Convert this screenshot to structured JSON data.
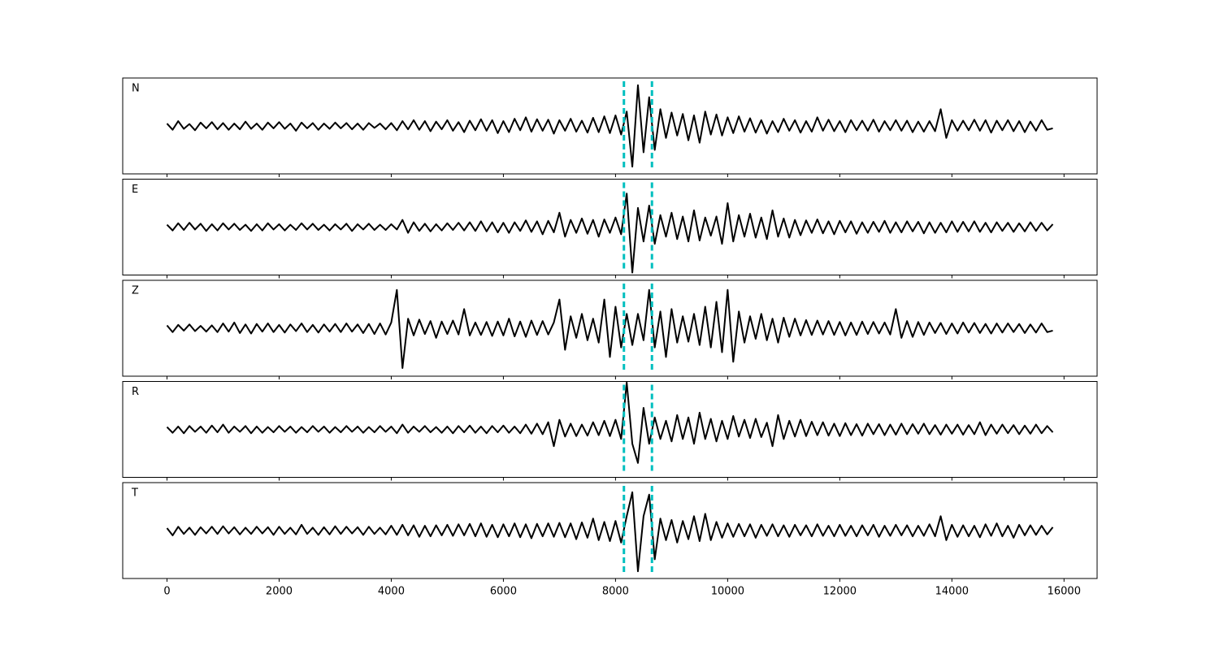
{
  "chart_data": {
    "type": "line",
    "layout": "stacked",
    "x": [
      0,
      100,
      200,
      300,
      400,
      500,
      600,
      700,
      800,
      900,
      1000,
      1100,
      1200,
      1300,
      1400,
      1500,
      1600,
      1700,
      1800,
      1900,
      2000,
      2100,
      2200,
      2300,
      2400,
      2500,
      2600,
      2700,
      2800,
      2900,
      3000,
      3100,
      3200,
      3300,
      3400,
      3500,
      3600,
      3700,
      3800,
      3900,
      4000,
      4100,
      4200,
      4300,
      4400,
      4500,
      4600,
      4700,
      4800,
      4900,
      5000,
      5100,
      5200,
      5300,
      5400,
      5500,
      5600,
      5700,
      5800,
      5900,
      6000,
      6100,
      6200,
      6300,
      6400,
      6500,
      6600,
      6700,
      6800,
      6900,
      7000,
      7100,
      7200,
      7300,
      7400,
      7500,
      7600,
      7700,
      7800,
      7900,
      8000,
      8100,
      8200,
      8300,
      8400,
      8500,
      8600,
      8700,
      8800,
      8900,
      9000,
      9100,
      9200,
      9300,
      9400,
      9500,
      9600,
      9700,
      9800,
      9900,
      10000,
      10100,
      10200,
      10300,
      10400,
      10500,
      10600,
      10700,
      10800,
      10900,
      11000,
      11100,
      11200,
      11300,
      11400,
      11500,
      11600,
      11700,
      11800,
      11900,
      12000,
      12100,
      12200,
      12300,
      12400,
      12500,
      12600,
      12700,
      12800,
      12900,
      13000,
      13100,
      13200,
      13300,
      13400,
      13500,
      13600,
      13700,
      13800,
      13900,
      14000,
      14100,
      14200,
      14300,
      14400,
      14500,
      14600,
      14700,
      14800,
      14900,
      15000,
      15100,
      15200,
      15300,
      15400,
      15500,
      15600,
      15700,
      15800
    ],
    "xlim": [
      -790,
      16590
    ],
    "xticks": [
      0,
      2000,
      4000,
      6000,
      8000,
      10000,
      12000,
      14000,
      16000
    ],
    "ylim": [
      -1,
      1
    ],
    "picks": [
      8150,
      8650
    ],
    "pick_color": "#00bfbf",
    "series": [
      {
        "name": "N",
        "color": "#000000",
        "values": [
          0.05,
          -0.08,
          0.1,
          -0.06,
          0.04,
          -0.09,
          0.07,
          -0.05,
          0.08,
          -0.07,
          0.06,
          -0.08,
          0.05,
          -0.07,
          0.09,
          -0.06,
          0.05,
          -0.08,
          0.07,
          -0.05,
          0.08,
          -0.06,
          0.05,
          -0.1,
          0.07,
          -0.05,
          0.06,
          -0.08,
          0.05,
          -0.06,
          0.07,
          -0.05,
          0.06,
          -0.07,
          0.05,
          -0.08,
          0.06,
          -0.04,
          0.05,
          -0.07,
          0.06,
          -0.09,
          0.1,
          -0.07,
          0.12,
          -0.08,
          0.1,
          -0.11,
          0.09,
          -0.07,
          0.12,
          -0.1,
          0.08,
          -0.13,
          0.11,
          -0.09,
          0.14,
          -0.1,
          0.12,
          -0.15,
          0.1,
          -0.13,
          0.15,
          -0.09,
          0.18,
          -0.12,
          0.14,
          -0.1,
          0.13,
          -0.16,
          0.12,
          -0.1,
          0.15,
          -0.12,
          0.11,
          -0.14,
          0.17,
          -0.13,
          0.2,
          -0.15,
          0.22,
          -0.18,
          0.3,
          -0.85,
          0.85,
          -0.55,
          0.6,
          -0.5,
          0.35,
          -0.25,
          0.28,
          -0.2,
          0.25,
          -0.3,
          0.22,
          -0.35,
          0.3,
          -0.18,
          0.24,
          -0.2,
          0.18,
          -0.15,
          0.2,
          -0.12,
          0.16,
          -0.14,
          0.12,
          -0.16,
          0.1,
          -0.13,
          0.15,
          -0.1,
          0.12,
          -0.14,
          0.1,
          -0.12,
          0.18,
          -0.1,
          0.13,
          -0.11,
          0.1,
          -0.13,
          0.12,
          -0.09,
          0.11,
          -0.1,
          0.13,
          -0.12,
          0.1,
          -0.09,
          0.12,
          -0.1,
          0.11,
          -0.13,
          0.09,
          -0.12,
          0.1,
          -0.11,
          0.35,
          -0.25,
          0.12,
          -0.1,
          0.11,
          -0.09,
          0.13,
          -0.1,
          0.12,
          -0.14,
          0.11,
          -0.09,
          0.12,
          -0.11,
          0.1,
          -0.13,
          0.09,
          -0.1,
          0.12,
          -0.08,
          -0.05
        ]
      },
      {
        "name": "E",
        "color": "#000000",
        "values": [
          0.05,
          -0.07,
          0.08,
          -0.06,
          0.09,
          -0.05,
          0.07,
          -0.08,
          0.06,
          -0.07,
          0.08,
          -0.05,
          0.07,
          -0.06,
          0.05,
          -0.08,
          0.06,
          -0.07,
          0.08,
          -0.05,
          0.06,
          -0.07,
          0.05,
          -0.06,
          0.08,
          -0.05,
          0.07,
          -0.06,
          0.05,
          -0.07,
          0.06,
          -0.05,
          0.07,
          -0.08,
          0.06,
          -0.05,
          0.07,
          -0.06,
          0.05,
          -0.06,
          0.06,
          -0.05,
          0.15,
          -0.12,
          0.1,
          -0.08,
          0.07,
          -0.09,
          0.06,
          -0.07,
          0.08,
          -0.06,
          0.09,
          -0.07,
          0.1,
          -0.08,
          0.12,
          -0.09,
          0.1,
          -0.11,
          0.09,
          -0.12,
          0.1,
          -0.08,
          0.14,
          -0.1,
          0.12,
          -0.15,
          0.13,
          -0.11,
          0.3,
          -0.2,
          0.15,
          -0.12,
          0.18,
          -0.14,
          0.15,
          -0.2,
          0.16,
          -0.12,
          0.2,
          -0.15,
          0.7,
          -0.95,
          0.4,
          -0.3,
          0.45,
          -0.35,
          0.25,
          -0.2,
          0.3,
          -0.25,
          0.22,
          -0.3,
          0.35,
          -0.28,
          0.2,
          -0.18,
          0.22,
          -0.35,
          0.5,
          -0.3,
          0.25,
          -0.2,
          0.28,
          -0.22,
          0.2,
          -0.25,
          0.35,
          -0.2,
          0.18,
          -0.22,
          0.15,
          -0.17,
          0.14,
          -0.12,
          0.16,
          -0.13,
          0.12,
          -0.15,
          0.13,
          -0.11,
          0.12,
          -0.14,
          0.1,
          -0.12,
          0.11,
          -0.1,
          0.13,
          -0.12,
          0.1,
          -0.11,
          0.12,
          -0.09,
          0.11,
          -0.13,
          0.1,
          -0.12,
          0.09,
          -0.11,
          0.12,
          -0.1,
          0.11,
          -0.09,
          0.12,
          -0.1,
          0.09,
          -0.11,
          0.1,
          -0.08,
          0.09,
          -0.1,
          0.08,
          -0.09,
          0.1,
          -0.08,
          0.09,
          -0.07,
          0.06
        ]
      },
      {
        "name": "Z",
        "color": "#000000",
        "values": [
          0.06,
          -0.08,
          0.07,
          -0.05,
          0.08,
          -0.06,
          0.05,
          -0.07,
          0.06,
          -0.08,
          0.1,
          -0.07,
          0.12,
          -0.1,
          0.08,
          -0.11,
          0.09,
          -0.07,
          0.1,
          -0.08,
          0.07,
          -0.09,
          0.08,
          -0.06,
          0.1,
          -0.08,
          0.07,
          -0.09,
          0.08,
          -0.07,
          0.09,
          -0.08,
          0.1,
          -0.07,
          0.08,
          -0.1,
          0.09,
          -0.12,
          0.1,
          -0.13,
          0.12,
          0.8,
          -0.83,
          0.2,
          -0.15,
          0.18,
          -0.12,
          0.15,
          -0.2,
          0.14,
          -0.12,
          0.16,
          -0.13,
          0.4,
          -0.15,
          0.12,
          -0.14,
          0.13,
          -0.16,
          0.14,
          -0.15,
          0.2,
          -0.17,
          0.14,
          -0.18,
          0.16,
          -0.14,
          0.15,
          -0.13,
          0.12,
          0.6,
          -0.45,
          0.25,
          -0.2,
          0.3,
          -0.25,
          0.2,
          -0.3,
          0.6,
          -0.6,
          0.45,
          -0.4,
          0.3,
          -0.35,
          0.3,
          -0.25,
          0.8,
          -0.4,
          0.35,
          -0.6,
          0.4,
          -0.3,
          0.25,
          -0.28,
          0.3,
          -0.35,
          0.45,
          -0.4,
          0.55,
          -0.5,
          0.8,
          -0.7,
          0.35,
          -0.3,
          0.25,
          -0.22,
          0.3,
          -0.25,
          0.2,
          -0.3,
          0.22,
          -0.18,
          0.2,
          -0.15,
          0.17,
          -0.14,
          0.16,
          -0.13,
          0.15,
          -0.14,
          0.13,
          -0.15,
          0.12,
          -0.14,
          0.14,
          -0.12,
          0.13,
          -0.11,
          0.12,
          -0.13,
          0.4,
          -0.2,
          0.15,
          -0.18,
          0.13,
          -0.14,
          0.12,
          -0.1,
          0.11,
          -0.12,
          0.1,
          -0.11,
          0.12,
          -0.09,
          0.11,
          -0.1,
          0.09,
          -0.11,
          0.1,
          -0.09,
          0.1,
          -0.08,
          0.09,
          -0.1,
          0.08,
          -0.09,
          0.1,
          -0.08,
          -0.05
        ]
      },
      {
        "name": "R",
        "color": "#000000",
        "values": [
          0.05,
          -0.07,
          0.06,
          -0.08,
          0.07,
          -0.05,
          0.06,
          -0.07,
          0.08,
          -0.06,
          0.1,
          -0.07,
          0.06,
          -0.05,
          0.07,
          -0.08,
          0.06,
          -0.07,
          0.05,
          -0.06,
          0.07,
          -0.05,
          0.06,
          -0.07,
          0.05,
          -0.06,
          0.07,
          -0.05,
          0.06,
          -0.07,
          0.05,
          -0.06,
          0.07,
          -0.05,
          0.06,
          -0.07,
          0.05,
          -0.06,
          0.07,
          -0.05,
          0.06,
          -0.08,
          0.1,
          -0.07,
          0.06,
          -0.05,
          0.07,
          -0.06,
          0.05,
          -0.07,
          0.06,
          -0.08,
          0.07,
          -0.06,
          0.08,
          -0.07,
          0.06,
          -0.08,
          0.07,
          -0.06,
          0.08,
          -0.07,
          0.06,
          -0.08,
          0.1,
          -0.09,
          0.12,
          -0.1,
          0.15,
          -0.35,
          0.2,
          -0.15,
          0.12,
          -0.14,
          0.1,
          -0.13,
          0.15,
          -0.12,
          0.18,
          -0.14,
          0.2,
          -0.2,
          0.98,
          -0.3,
          -0.7,
          0.45,
          -0.3,
          0.25,
          -0.2,
          0.18,
          -0.25,
          0.3,
          -0.2,
          0.25,
          -0.3,
          0.35,
          -0.2,
          0.22,
          -0.25,
          0.18,
          -0.2,
          0.28,
          -0.15,
          0.2,
          -0.18,
          0.22,
          -0.16,
          0.14,
          -0.35,
          0.3,
          -0.2,
          0.18,
          -0.15,
          0.2,
          -0.14,
          0.16,
          -0.12,
          0.15,
          -0.13,
          0.12,
          -0.14,
          0.13,
          -0.12,
          0.11,
          -0.13,
          0.12,
          -0.1,
          0.11,
          -0.12,
          0.1,
          -0.11,
          0.12,
          -0.1,
          0.11,
          -0.09,
          0.12,
          -0.1,
          0.09,
          -0.11,
          0.1,
          -0.09,
          0.1,
          -0.11,
          0.09,
          -0.1,
          0.15,
          -0.12,
          0.1,
          -0.09,
          0.1,
          -0.08,
          0.09,
          -0.1,
          0.08,
          -0.09,
          0.1,
          -0.08,
          0.07,
          -0.06
        ]
      },
      {
        "name": "T",
        "color": "#000000",
        "values": [
          0.05,
          -0.1,
          0.08,
          -0.07,
          0.06,
          -0.09,
          0.07,
          -0.06,
          0.08,
          -0.07,
          0.09,
          -0.06,
          0.07,
          -0.08,
          0.06,
          -0.07,
          0.08,
          -0.06,
          0.07,
          -0.09,
          0.08,
          -0.07,
          0.06,
          -0.08,
          0.12,
          -0.07,
          0.06,
          -0.09,
          0.07,
          -0.08,
          0.09,
          -0.07,
          0.08,
          -0.06,
          0.07,
          -0.09,
          0.08,
          -0.07,
          0.06,
          -0.08,
          0.1,
          -0.09,
          0.12,
          -0.1,
          0.11,
          -0.13,
          0.1,
          -0.12,
          0.11,
          -0.1,
          0.12,
          -0.11,
          0.13,
          -0.1,
          0.14,
          -0.12,
          0.15,
          -0.13,
          0.12,
          -0.14,
          0.13,
          -0.12,
          0.15,
          -0.14,
          0.13,
          -0.16,
          0.14,
          -0.12,
          0.15,
          -0.13,
          0.16,
          -0.14,
          0.15,
          -0.18,
          0.17,
          -0.15,
          0.25,
          -0.2,
          0.18,
          -0.22,
          0.2,
          -0.25,
          0.3,
          0.8,
          -0.85,
          0.3,
          0.75,
          -0.6,
          0.25,
          -0.2,
          0.22,
          -0.25,
          0.2,
          -0.18,
          0.3,
          -0.22,
          0.35,
          -0.2,
          0.18,
          -0.15,
          0.15,
          -0.13,
          0.14,
          -0.12,
          0.13,
          -0.15,
          0.12,
          -0.11,
          0.13,
          -0.12,
          0.11,
          -0.13,
          0.12,
          -0.1,
          0.11,
          -0.12,
          0.13,
          -0.11,
          0.1,
          -0.12,
          0.12,
          -0.11,
          0.1,
          -0.12,
          0.11,
          -0.1,
          0.12,
          -0.13,
          0.1,
          -0.11,
          0.12,
          -0.1,
          0.11,
          -0.12,
          0.1,
          -0.11,
          0.13,
          -0.12,
          0.3,
          -0.2,
          0.12,
          -0.13,
          0.11,
          -0.12,
          0.1,
          -0.14,
          0.13,
          -0.11,
          0.15,
          -0.12,
          0.1,
          -0.15,
          0.12,
          -0.1,
          0.11,
          -0.09,
          0.1,
          -0.08,
          0.07
        ]
      }
    ]
  }
}
